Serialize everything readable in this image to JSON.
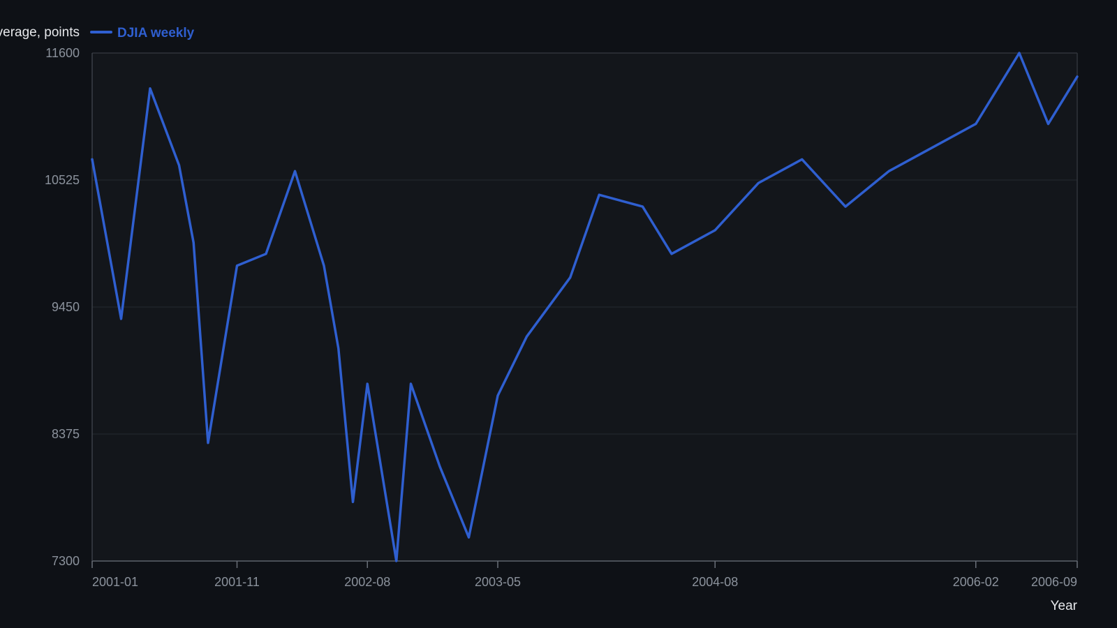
{
  "chart_data": {
    "type": "line",
    "title": "",
    "xlabel": "Year",
    "ylabel": "Dow Jones Industrial Average, points",
    "ylim": [
      7300,
      11600
    ],
    "yticks": [
      "7300",
      "8375",
      "9450",
      "10525",
      "11600"
    ],
    "xlim": [
      "2001-01",
      "2006-09"
    ],
    "xticks": [
      "2001-01",
      "2001-11",
      "2002-08",
      "2003-05",
      "2004-08",
      "2006-02",
      "2006-09"
    ],
    "grid": true,
    "legend": "top-left",
    "series": [
      {
        "name": "DJIA weekly",
        "color": "#2f5fd0",
        "points": [
          [
            "2001-01-01",
            10700
          ],
          [
            "2001-03-01",
            9350
          ],
          [
            "2001-05-01",
            11300
          ],
          [
            "2001-07-01",
            10650
          ],
          [
            "2001-08-01",
            9995
          ],
          [
            "2001-09-01",
            8300
          ],
          [
            "2001-11-01",
            9800
          ],
          [
            "2002-01-01",
            9900
          ],
          [
            "2002-03-01",
            10600
          ],
          [
            "2002-05-01",
            9800
          ],
          [
            "2002-06-01",
            9100
          ],
          [
            "2002-07-01",
            7800
          ],
          [
            "2002-08-01",
            8800
          ],
          [
            "2002-10-01",
            7300
          ],
          [
            "2002-11-01",
            8800
          ],
          [
            "2003-01-01",
            8100
          ],
          [
            "2003-03-01",
            7500
          ],
          [
            "2003-05-01",
            8700
          ],
          [
            "2003-07-01",
            9200
          ],
          [
            "2003-10-01",
            9700
          ],
          [
            "2003-12-01",
            10400
          ],
          [
            "2004-03-01",
            10300
          ],
          [
            "2004-05-01",
            9900
          ],
          [
            "2004-08-01",
            10100
          ],
          [
            "2004-11-01",
            10500
          ],
          [
            "2005-02-01",
            10700
          ],
          [
            "2005-05-01",
            10300
          ],
          [
            "2005-08-01",
            10600
          ],
          [
            "2005-11-01",
            10800
          ],
          [
            "2006-02-01",
            11000
          ],
          [
            "2006-05-01",
            11600
          ],
          [
            "2006-07-01",
            11000
          ],
          [
            "2006-09-01",
            11400
          ]
        ]
      }
    ]
  }
}
